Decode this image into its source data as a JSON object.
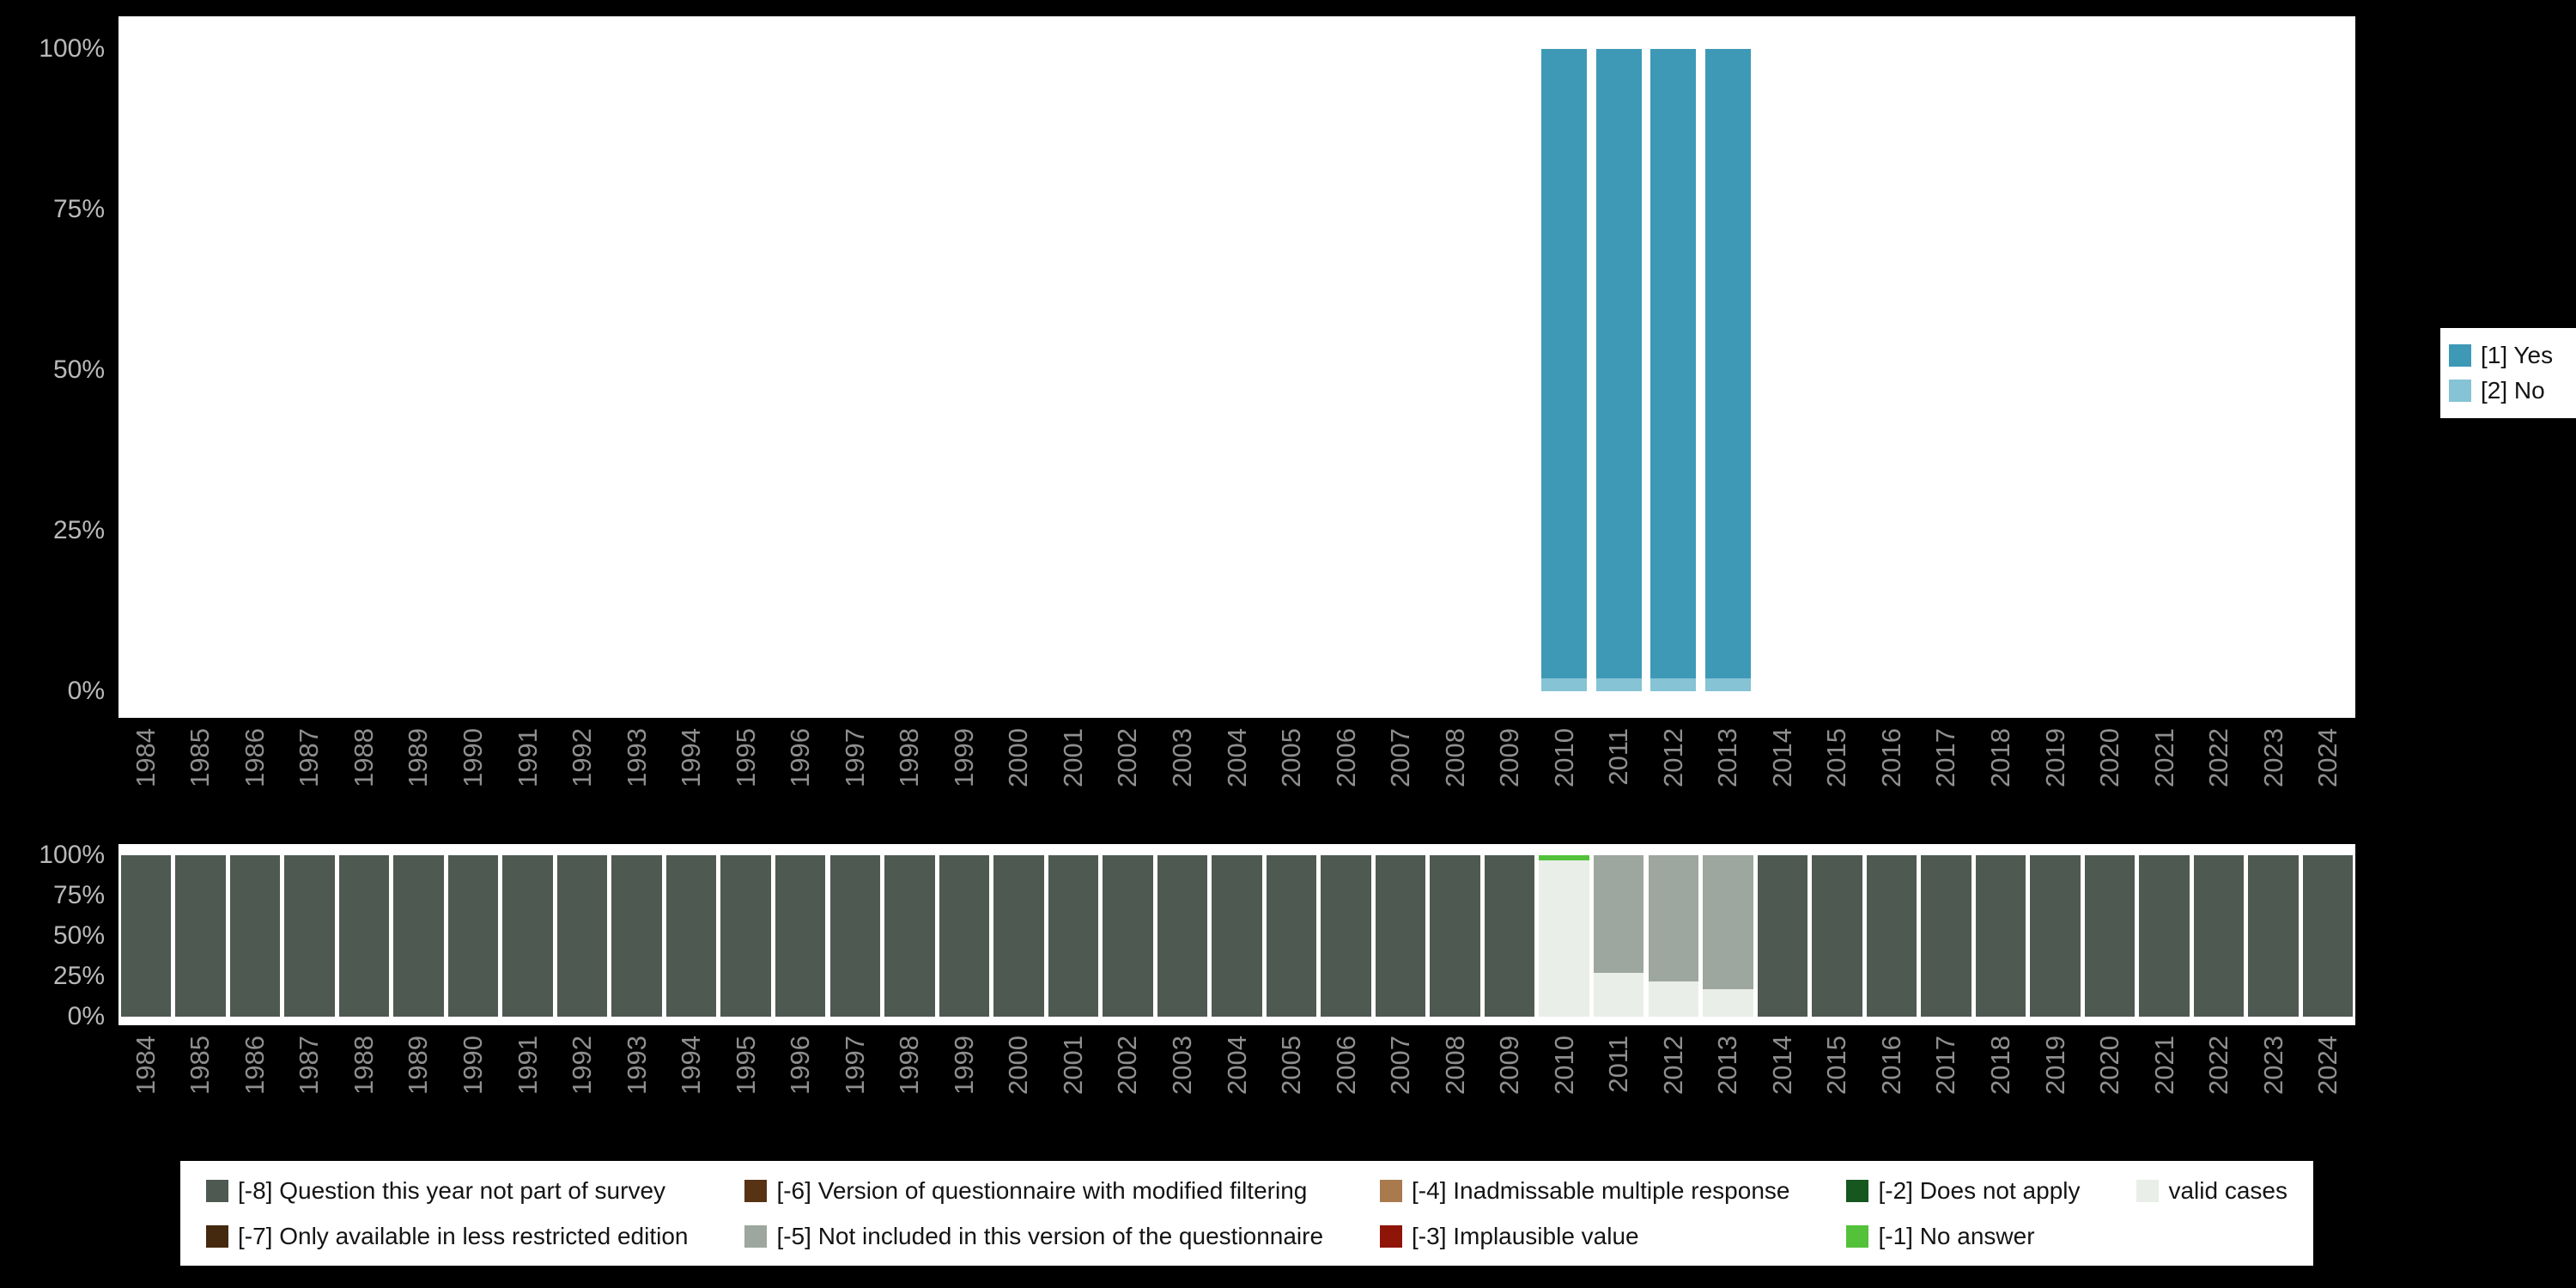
{
  "page": {
    "background_color": "#000000",
    "panel_color": "#ffffff",
    "x_axis_text_color": "#8f8f8f",
    "y_axis_text_color": "#b9b9b9"
  },
  "chart_data": [
    {
      "id": "availability",
      "type": "bar",
      "stacked": true,
      "title": "",
      "xlabel": "",
      "ylabel": "",
      "ylim": [
        0,
        100
      ],
      "grid": false,
      "legend_position": "right",
      "legend_id": "legend-availability",
      "bar_width_ratio": 0.84,
      "yticks": [
        "100%",
        "75%",
        "50%",
        "25%",
        "0%"
      ],
      "x": [
        "1984",
        "1985",
        "1986",
        "1987",
        "1988",
        "1989",
        "1990",
        "1991",
        "1992",
        "1993",
        "1994",
        "1995",
        "1996",
        "1997",
        "1998",
        "1999",
        "2000",
        "2001",
        "2002",
        "2003",
        "2004",
        "2005",
        "2006",
        "2007",
        "2008",
        "2009",
        "2010",
        "2011",
        "2012",
        "2013",
        "2014",
        "2015",
        "2016",
        "2017",
        "2018",
        "2019",
        "2020",
        "2021",
        "2022",
        "2023",
        "2024"
      ],
      "legend": [
        {
          "label": "[1] Yes",
          "color": "#3e99b7"
        },
        {
          "label": "[2] No",
          "color": "#85c3d5"
        }
      ],
      "series": [
        {
          "name": "[1] Yes",
          "color": "#3e99b7",
          "values": [
            0,
            0,
            0,
            0,
            0,
            0,
            0,
            0,
            0,
            0,
            0,
            0,
            0,
            0,
            0,
            0,
            0,
            0,
            0,
            0,
            0,
            0,
            0,
            0,
            0,
            0,
            98,
            98,
            98,
            98,
            0,
            0,
            0,
            0,
            0,
            0,
            0,
            0,
            0,
            0,
            0
          ]
        },
        {
          "name": "[2] No",
          "color": "#85c3d5",
          "values": [
            0,
            0,
            0,
            0,
            0,
            0,
            0,
            0,
            0,
            0,
            0,
            0,
            0,
            0,
            0,
            0,
            0,
            0,
            0,
            0,
            0,
            0,
            0,
            0,
            0,
            0,
            2,
            2,
            2,
            2,
            0,
            0,
            0,
            0,
            0,
            0,
            0,
            0,
            0,
            0,
            0
          ]
        }
      ]
    },
    {
      "id": "missings",
      "type": "bar",
      "stacked": true,
      "title": "",
      "xlabel": "",
      "ylabel": "",
      "ylim": [
        0,
        100
      ],
      "grid": false,
      "legend_position": "bottom",
      "legend_id": "legend-missings",
      "bar_width_ratio": 0.92,
      "yticks": [
        "100%",
        "75%",
        "50%",
        "25%",
        "0%"
      ],
      "x": [
        "1984",
        "1985",
        "1986",
        "1987",
        "1988",
        "1989",
        "1990",
        "1991",
        "1992",
        "1993",
        "1994",
        "1995",
        "1996",
        "1997",
        "1998",
        "1999",
        "2000",
        "2001",
        "2002",
        "2003",
        "2004",
        "2005",
        "2006",
        "2007",
        "2008",
        "2009",
        "2010",
        "2011",
        "2012",
        "2013",
        "2014",
        "2015",
        "2016",
        "2017",
        "2018",
        "2019",
        "2020",
        "2021",
        "2022",
        "2023",
        "2024"
      ],
      "legend": [
        {
          "label": "[-8] Question this year not part of survey",
          "color": "#4e5952"
        },
        {
          "label": "[-7] Only available in less restricted edition",
          "color": "#45290e"
        },
        {
          "label": "[-6] Version of questionnaire with modified filtering",
          "color": "#573314"
        },
        {
          "label": "[-5] Not included in this version of the questionnaire",
          "color": "#9da69f"
        },
        {
          "label": "[-4] Inadmissable multiple response",
          "color": "#a87a4e"
        },
        {
          "label": "[-3] Implausible value",
          "color": "#8e1507"
        },
        {
          "label": "[-2] Does not apply",
          "color": "#15571f"
        },
        {
          "label": "[-1] No answer",
          "color": "#54c13b"
        },
        {
          "label": "valid cases",
          "color": "#e9eee8"
        }
      ],
      "series": [
        {
          "name": "[-8] Question this year not part of survey",
          "color": "#4e5952",
          "values": [
            100,
            100,
            100,
            100,
            100,
            100,
            100,
            100,
            100,
            100,
            100,
            100,
            100,
            100,
            100,
            100,
            100,
            100,
            100,
            100,
            100,
            100,
            100,
            100,
            100,
            100,
            0,
            0,
            0,
            0,
            100,
            100,
            100,
            100,
            100,
            100,
            100,
            100,
            100,
            100,
            100
          ]
        },
        {
          "name": "[-5] Not included in this version of the questionnaire",
          "color": "#9da69f",
          "values": [
            0,
            0,
            0,
            0,
            0,
            0,
            0,
            0,
            0,
            0,
            0,
            0,
            0,
            0,
            0,
            0,
            0,
            0,
            0,
            0,
            0,
            0,
            0,
            0,
            0,
            0,
            0,
            73,
            78,
            83,
            0,
            0,
            0,
            0,
            0,
            0,
            0,
            0,
            0,
            0,
            0
          ]
        },
        {
          "name": "[-1] No answer",
          "color": "#54c13b",
          "values": [
            0,
            0,
            0,
            0,
            0,
            0,
            0,
            0,
            0,
            0,
            0,
            0,
            0,
            0,
            0,
            0,
            0,
            0,
            0,
            0,
            0,
            0,
            0,
            0,
            0,
            0,
            3,
            0,
            0,
            0,
            0,
            0,
            0,
            0,
            0,
            0,
            0,
            0,
            0,
            0,
            0
          ]
        },
        {
          "name": "valid cases",
          "color": "#e9eee8",
          "values": [
            0,
            0,
            0,
            0,
            0,
            0,
            0,
            0,
            0,
            0,
            0,
            0,
            0,
            0,
            0,
            0,
            0,
            0,
            0,
            0,
            0,
            0,
            0,
            0,
            0,
            0,
            97,
            27,
            22,
            17,
            0,
            0,
            0,
            0,
            0,
            0,
            0,
            0,
            0,
            0,
            0
          ]
        }
      ]
    }
  ]
}
